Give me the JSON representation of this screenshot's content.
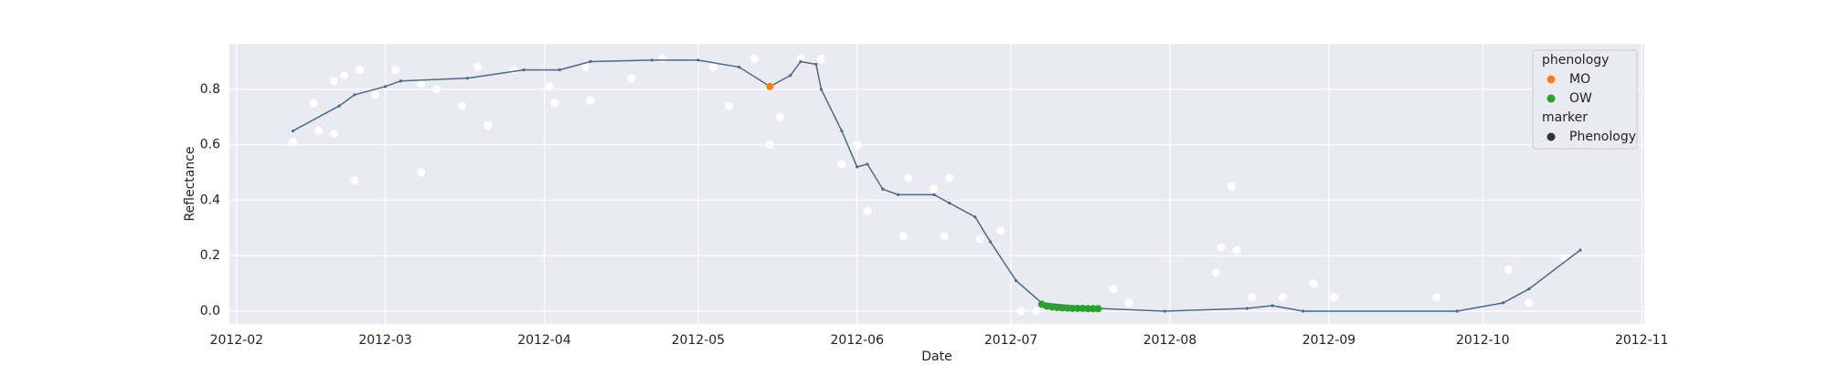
{
  "chart_data": {
    "type": "scatter",
    "xlabel": "Date",
    "ylabel": "Reflectance",
    "xlim": [
      29.6,
      305.5
    ],
    "ylim": [
      -0.046,
      0.964
    ],
    "xticks": [
      {
        "value": 31,
        "label": "2012-02"
      },
      {
        "value": 60,
        "label": "2012-03"
      },
      {
        "value": 91,
        "label": "2012-04"
      },
      {
        "value": 121,
        "label": "2012-05"
      },
      {
        "value": 152,
        "label": "2012-06"
      },
      {
        "value": 182,
        "label": "2012-07"
      },
      {
        "value": 213,
        "label": "2012-08"
      },
      {
        "value": 244,
        "label": "2012-09"
      },
      {
        "value": 274,
        "label": "2012-10"
      },
      {
        "value": 305,
        "label": "2012-11"
      }
    ],
    "yticks": [
      {
        "value": 0,
        "label": "0.0"
      },
      0.2,
      0.4,
      0.6,
      0.8
    ],
    "grid": true,
    "observations": {
      "color": "#ffffff",
      "x": [
        42,
        46,
        47,
        50,
        50,
        52,
        54,
        55,
        58,
        62,
        67,
        67,
        70,
        75,
        78,
        80,
        85,
        92,
        93,
        99,
        100,
        108,
        114,
        124,
        127,
        132,
        135,
        137,
        141,
        145,
        149,
        152,
        154,
        161,
        162,
        167,
        169,
        170,
        176,
        180,
        184,
        187,
        202,
        205,
        222,
        223,
        225,
        226,
        229,
        235,
        241,
        245,
        265,
        279,
        283,
        290
      ],
      "y": [
        0.61,
        0.75,
        0.65,
        0.83,
        0.64,
        0.85,
        0.47,
        0.87,
        0.78,
        0.87,
        0.5,
        0.82,
        0.8,
        0.74,
        0.88,
        0.67,
        0.87,
        0.81,
        0.75,
        0.88,
        0.76,
        0.84,
        0.91,
        0.88,
        0.74,
        0.91,
        0.6,
        0.7,
        0.91,
        0.91,
        0.53,
        0.6,
        0.36,
        0.27,
        0.48,
        0.44,
        0.27,
        0.48,
        0.26,
        0.29,
        0.0,
        0.0,
        0.08,
        0.03,
        0.14,
        0.23,
        0.45,
        0.22,
        0.05,
        0.05,
        0.1,
        0.05,
        0.05,
        0.15,
        0.03,
        0.19
      ]
    },
    "line": {
      "color": "#4a6a86",
      "x": [
        42,
        51,
        54,
        60,
        63,
        76,
        87,
        94,
        100,
        112,
        121,
        129,
        135,
        139,
        141,
        144,
        145,
        149,
        152,
        154,
        157,
        160,
        167,
        170,
        175,
        178,
        183,
        188,
        199,
        212,
        228,
        233,
        239,
        269,
        278,
        283,
        293
      ],
      "y": [
        0.65,
        0.74,
        0.78,
        0.81,
        0.83,
        0.84,
        0.87,
        0.87,
        0.9,
        0.905,
        0.905,
        0.88,
        0.81,
        0.85,
        0.9,
        0.89,
        0.8,
        0.65,
        0.52,
        0.53,
        0.44,
        0.42,
        0.42,
        0.39,
        0.34,
        0.25,
        0.11,
        0.03,
        0.01,
        0.0,
        0.01,
        0.02,
        0.0,
        0.0,
        0.03,
        0.08,
        0.22
      ]
    },
    "legend_title": "phenology",
    "legend_position": "upper right",
    "series": [
      {
        "name": "MO",
        "color": "#ff7f0e",
        "x": [
          135
        ],
        "y": [
          0.81
        ]
      },
      {
        "name": "OW",
        "color": "#2ca02c",
        "x": [
          188,
          189,
          190,
          191,
          192,
          193,
          194,
          195,
          196,
          197,
          198,
          199
        ],
        "y": [
          0.025,
          0.018,
          0.015,
          0.013,
          0.012,
          0.011,
          0.01,
          0.01,
          0.01,
          0.009,
          0.009,
          0.009
        ]
      }
    ],
    "marker_legend": {
      "title": "marker",
      "name": "Phenology",
      "color": "#333333"
    }
  }
}
